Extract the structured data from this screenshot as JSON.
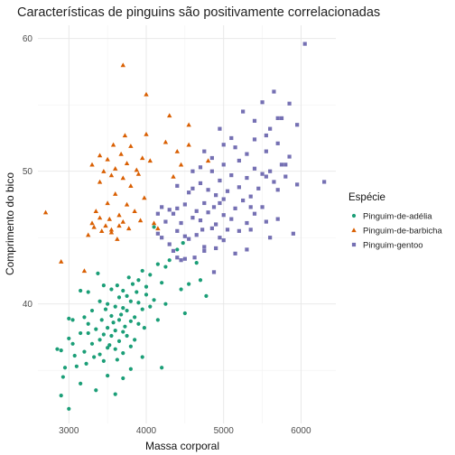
{
  "chart_data": {
    "type": "scatter",
    "title": "Características de pinguins são positivamente correlacionadas",
    "xlabel": "Massa corporal",
    "ylabel": "Comprimento do bico",
    "xlim": [
      2600,
      6450
    ],
    "ylim": [
      31,
      61
    ],
    "xticks": [
      3000,
      4000,
      5000,
      6000
    ],
    "yticks": [
      40,
      50,
      60
    ],
    "xtick_labels": [
      "3000",
      "4000",
      "5000",
      "6000"
    ],
    "ytick_labels": [
      "40",
      "50",
      "60"
    ],
    "grid": true,
    "legend": {
      "title": "Espécie",
      "position": "right"
    },
    "series": [
      {
        "name": "Pinguim-de-adélia",
        "marker": "circle",
        "color": "#1b9e77",
        "points": [
          [
            2850,
            36.6
          ],
          [
            2900,
            36.5
          ],
          [
            2925,
            34.5
          ],
          [
            2950,
            35.2
          ],
          [
            3000,
            37.4
          ],
          [
            3000,
            38.9
          ],
          [
            3050,
            37.0
          ],
          [
            3075,
            36.1
          ],
          [
            3100,
            35.3
          ],
          [
            3150,
            37.8
          ],
          [
            3200,
            36.4
          ],
          [
            3200,
            39.0
          ],
          [
            3250,
            37.8
          ],
          [
            3250,
            38.5
          ],
          [
            3300,
            37.0
          ],
          [
            3300,
            39.5
          ],
          [
            3325,
            36.0
          ],
          [
            3350,
            38.1
          ],
          [
            3400,
            36.2
          ],
          [
            3400,
            37.3
          ],
          [
            3400,
            40.2
          ],
          [
            3425,
            38.8
          ],
          [
            3450,
            35.7
          ],
          [
            3450,
            37.7
          ],
          [
            3475,
            39.6
          ],
          [
            3500,
            36.7
          ],
          [
            3500,
            38.2
          ],
          [
            3500,
            40.0
          ],
          [
            3525,
            36.9
          ],
          [
            3550,
            37.6
          ],
          [
            3550,
            39.1
          ],
          [
            3550,
            41.1
          ],
          [
            3575,
            38.6
          ],
          [
            3600,
            36.6
          ],
          [
            3600,
            38.0
          ],
          [
            3600,
            39.8
          ],
          [
            3625,
            41.4
          ],
          [
            3650,
            37.2
          ],
          [
            3650,
            38.8
          ],
          [
            3650,
            40.5
          ],
          [
            3675,
            39.2
          ],
          [
            3700,
            36.3
          ],
          [
            3700,
            37.9
          ],
          [
            3700,
            39.7
          ],
          [
            3700,
            41.0
          ],
          [
            3725,
            38.3
          ],
          [
            3750,
            37.6
          ],
          [
            3750,
            39.5
          ],
          [
            3750,
            40.6
          ],
          [
            3775,
            42.0
          ],
          [
            3800,
            36.8
          ],
          [
            3800,
            38.7
          ],
          [
            3800,
            40.2
          ],
          [
            3825,
            41.5
          ],
          [
            3850,
            37.3
          ],
          [
            3850,
            39.0
          ],
          [
            3875,
            40.9
          ],
          [
            3900,
            38.5
          ],
          [
            3900,
            40.1
          ],
          [
            3900,
            41.8
          ],
          [
            3950,
            39.6
          ],
          [
            3950,
            42.5
          ],
          [
            3975,
            38.2
          ],
          [
            4000,
            40.7
          ],
          [
            4000,
            41.3
          ],
          [
            4050,
            39.8
          ],
          [
            4050,
            42.2
          ],
          [
            4100,
            40.3
          ],
          [
            4150,
            43.0
          ],
          [
            4150,
            38.8
          ],
          [
            4200,
            41.6
          ],
          [
            4250,
            42.8
          ],
          [
            4250,
            40.0
          ],
          [
            4300,
            43.3
          ],
          [
            4400,
            44.1
          ],
          [
            4450,
            41.1
          ],
          [
            4475,
            44.6
          ],
          [
            4500,
            39.3
          ],
          [
            4550,
            41.5
          ],
          [
            4650,
            43.1
          ],
          [
            4700,
            41.8
          ],
          [
            4775,
            40.6
          ],
          [
            2900,
            33.1
          ],
          [
            3000,
            32.1
          ],
          [
            3150,
            34.0
          ],
          [
            3225,
            35.5
          ],
          [
            3350,
            33.5
          ],
          [
            3500,
            34.6
          ],
          [
            3600,
            33.2
          ],
          [
            3700,
            34.4
          ],
          [
            3800,
            35.1
          ],
          [
            3950,
            36.0
          ],
          [
            3250,
            40.9
          ],
          [
            3150,
            41.0
          ],
          [
            3050,
            38.8
          ],
          [
            3375,
            42.3
          ],
          [
            3450,
            41.4
          ],
          [
            4100,
            45.8
          ],
          [
            4200,
            35.2
          ],
          [
            3625,
            35.8
          ]
        ]
      },
      {
        "name": "Pinguim-de-barbicha",
        "marker": "triangle",
        "color": "#d95f02",
        "points": [
          [
            2700,
            46.9
          ],
          [
            2900,
            43.2
          ],
          [
            3200,
            42.5
          ],
          [
            3250,
            45.2
          ],
          [
            3300,
            46.1
          ],
          [
            3300,
            50.5
          ],
          [
            3325,
            45.8
          ],
          [
            3350,
            47.0
          ],
          [
            3400,
            49.2
          ],
          [
            3400,
            51.2
          ],
          [
            3400,
            46.5
          ],
          [
            3425,
            45.5
          ],
          [
            3450,
            50.0
          ],
          [
            3475,
            45.9
          ],
          [
            3500,
            47.6
          ],
          [
            3500,
            50.9
          ],
          [
            3525,
            46.4
          ],
          [
            3550,
            49.7
          ],
          [
            3550,
            45.4
          ],
          [
            3575,
            52.0
          ],
          [
            3600,
            48.3
          ],
          [
            3600,
            50.2
          ],
          [
            3650,
            46.7
          ],
          [
            3650,
            45.9
          ],
          [
            3675,
            51.3
          ],
          [
            3700,
            49.5
          ],
          [
            3700,
            46.2
          ],
          [
            3725,
            52.7
          ],
          [
            3750,
            47.5
          ],
          [
            3750,
            50.6
          ],
          [
            3775,
            45.7
          ],
          [
            3800,
            48.9
          ],
          [
            3800,
            51.9
          ],
          [
            3850,
            47.0
          ],
          [
            3875,
            50.1
          ],
          [
            3900,
            49.8
          ],
          [
            3925,
            46.3
          ],
          [
            3950,
            51.0
          ],
          [
            3975,
            48.0
          ],
          [
            4000,
            52.8
          ],
          [
            4050,
            50.8
          ],
          [
            4100,
            46.1
          ],
          [
            4150,
            45.7
          ],
          [
            4250,
            52.2
          ],
          [
            4300,
            54.2
          ],
          [
            4400,
            51.5
          ],
          [
            4450,
            50.5
          ],
          [
            4550,
            53.5
          ],
          [
            4550,
            52.0
          ],
          [
            4800,
            50.8
          ],
          [
            3700,
            58.0
          ],
          [
            4000,
            55.8
          ],
          [
            3550,
            45.6
          ],
          [
            3625,
            44.9
          ],
          [
            4350,
            49.6
          ]
        ]
      },
      {
        "name": "Pinguim-gentoo",
        "marker": "square",
        "color": "#7570b3",
        "points": [
          [
            4150,
            45.3
          ],
          [
            4200,
            45.0
          ],
          [
            4250,
            46.2
          ],
          [
            4300,
            44.5
          ],
          [
            4350,
            46.8
          ],
          [
            4400,
            45.5
          ],
          [
            4400,
            47.2
          ],
          [
            4450,
            43.3
          ],
          [
            4450,
            46.1
          ],
          [
            4500,
            47.5
          ],
          [
            4500,
            45.1
          ],
          [
            4550,
            48.4
          ],
          [
            4550,
            44.9
          ],
          [
            4600,
            46.5
          ],
          [
            4600,
            48.7
          ],
          [
            4650,
            45.2
          ],
          [
            4650,
            47.0
          ],
          [
            4700,
            46.3
          ],
          [
            4700,
            49.1
          ],
          [
            4725,
            45.6
          ],
          [
            4750,
            47.6
          ],
          [
            4750,
            44.0
          ],
          [
            4800,
            46.9
          ],
          [
            4800,
            48.6
          ],
          [
            4850,
            45.7
          ],
          [
            4850,
            50.0
          ],
          [
            4875,
            47.3
          ],
          [
            4900,
            46.0
          ],
          [
            4900,
            48.2
          ],
          [
            4950,
            45.0
          ],
          [
            4950,
            49.3
          ],
          [
            5000,
            46.7
          ],
          [
            5000,
            47.9
          ],
          [
            5000,
            50.5
          ],
          [
            5050,
            45.6
          ],
          [
            5050,
            48.5
          ],
          [
            5100,
            46.4
          ],
          [
            5100,
            49.7
          ],
          [
            5150,
            47.2
          ],
          [
            5200,
            45.5
          ],
          [
            5200,
            48.8
          ],
          [
            5200,
            50.8
          ],
          [
            5250,
            47.8
          ],
          [
            5300,
            46.1
          ],
          [
            5300,
            49.5
          ],
          [
            5300,
            51.3
          ],
          [
            5350,
            48.1
          ],
          [
            5400,
            46.8
          ],
          [
            5400,
            50.2
          ],
          [
            5450,
            48.7
          ],
          [
            5500,
            47.3
          ],
          [
            5500,
            49.8
          ],
          [
            5550,
            51.5
          ],
          [
            5550,
            46.2
          ],
          [
            5600,
            50.0
          ],
          [
            5650,
            49.2
          ],
          [
            5700,
            48.6
          ],
          [
            5700,
            52.1
          ],
          [
            5750,
            50.5
          ],
          [
            5800,
            49.6
          ],
          [
            5850,
            51.1
          ],
          [
            5950,
            49.0
          ],
          [
            6050,
            59.6
          ],
          [
            6300,
            49.2
          ],
          [
            5650,
            56.0
          ],
          [
            5550,
            52.7
          ],
          [
            5850,
            55.1
          ],
          [
            5950,
            53.5
          ],
          [
            5750,
            54.0
          ],
          [
            5600,
            53.2
          ],
          [
            4350,
            44.0
          ],
          [
            4400,
            43.5
          ],
          [
            4500,
            43.4
          ],
          [
            4300,
            47.1
          ],
          [
            4875,
            42.4
          ],
          [
            4900,
            44.2
          ],
          [
            5000,
            44.8
          ],
          [
            4750,
            44.3
          ],
          [
            4625,
            43.5
          ],
          [
            5150,
            43.8
          ],
          [
            5300,
            44.1
          ],
          [
            5350,
            45.6
          ],
          [
            5600,
            45.0
          ],
          [
            5900,
            45.3
          ],
          [
            5700,
            46.4
          ],
          [
            5100,
            52.5
          ],
          [
            4950,
            53.2
          ],
          [
            5250,
            54.5
          ],
          [
            5400,
            53.8
          ],
          [
            5500,
            55.2
          ],
          [
            5700,
            54.0
          ],
          [
            5800,
            50.5
          ],
          [
            4850,
            51.0
          ],
          [
            4700,
            50.3
          ],
          [
            5000,
            52.0
          ],
          [
            5150,
            51.8
          ],
          [
            5400,
            52.4
          ],
          [
            5550,
            49.6
          ],
          [
            5350,
            47.3
          ],
          [
            4400,
            48.9
          ],
          [
            4600,
            50.0
          ],
          [
            4950,
            47.6
          ],
          [
            4750,
            51.5
          ],
          [
            4200,
            47.3
          ],
          [
            4150,
            46.8
          ]
        ]
      }
    ]
  }
}
